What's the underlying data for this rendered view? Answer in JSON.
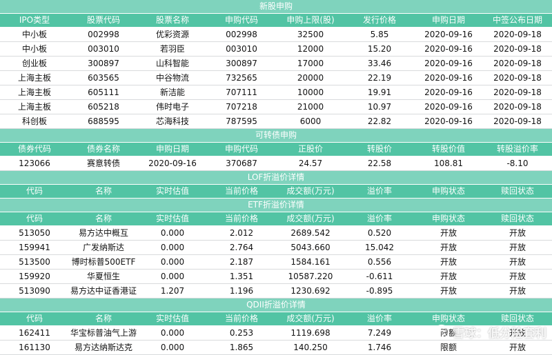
{
  "sections": {
    "ipo": {
      "title": "新股申购",
      "columns": [
        "IPO类型",
        "股票代码",
        "股票名称",
        "申购代码",
        "申购上限(股)",
        "发行价格",
        "申购日期",
        "中签公布日期"
      ],
      "rows": [
        [
          "中小板",
          "002998",
          "优彩资源",
          "002998",
          "32500",
          "5.85",
          "2020-09-16",
          "2020-09-18"
        ],
        [
          "中小板",
          "003010",
          "若羽臣",
          "003010",
          "12000",
          "15.20",
          "2020-09-16",
          "2020-09-18"
        ],
        [
          "创业板",
          "300897",
          "山科智能",
          "300897",
          "17000",
          "33.46",
          "2020-09-16",
          "2020-09-18"
        ],
        [
          "上海主板",
          "603565",
          "中谷物流",
          "732565",
          "20000",
          "22.19",
          "2020-09-16",
          "2020-09-18"
        ],
        [
          "上海主板",
          "605111",
          "新洁能",
          "707111",
          "10000",
          "19.91",
          "2020-09-16",
          "2020-09-18"
        ],
        [
          "上海主板",
          "605218",
          "伟时电子",
          "707218",
          "21000",
          "10.97",
          "2020-09-16",
          "2020-09-18"
        ],
        [
          "科创板",
          "688595",
          "芯海科技",
          "787595",
          "6000",
          "22.82",
          "2020-09-16",
          "2020-09-18"
        ]
      ]
    },
    "bond": {
      "title": "可转债申购",
      "columns": [
        "债券代码",
        "债券名称",
        "申购日期",
        "申购代码",
        "正股价",
        "转股价",
        "转股价值",
        "转股溢价率"
      ],
      "rows": [
        [
          "123066",
          "赛意转债",
          "2020-09-16",
          "370687",
          "24.57",
          "22.58",
          "108.81",
          "-8.10"
        ]
      ]
    },
    "lof": {
      "title": "LOF折溢价详情",
      "columns": [
        "代码",
        "名称",
        "实时估值",
        "当前价格",
        "成交额(万元)",
        "溢价率",
        "申购状态",
        "赎回状态"
      ],
      "rows": []
    },
    "etf": {
      "title": "ETF折溢价详情",
      "columns": [
        "代码",
        "名称",
        "实时估值",
        "当前价格",
        "成交额(万元)",
        "溢价率",
        "申购状态",
        "赎回状态"
      ],
      "rows": [
        [
          "513050",
          "易方达中概互",
          "0.000",
          "2.012",
          "2689.542",
          "0.520",
          "开放",
          "开放"
        ],
        [
          "159941",
          "广发纳斯达",
          "0.000",
          "2.764",
          "5043.660",
          "15.042",
          "开放",
          "开放"
        ],
        [
          "513500",
          "博时标普500ETF",
          "0.000",
          "2.187",
          "1584.161",
          "0.556",
          "开放",
          "开放"
        ],
        [
          "159920",
          "华夏恒生",
          "0.000",
          "1.351",
          "10587.220",
          "-0.611",
          "开放",
          "开放"
        ],
        [
          "513090",
          "易方达中证香港证",
          "1.207",
          "1.196",
          "1230.692",
          "-0.895",
          "开放",
          "开放"
        ]
      ]
    },
    "qdii": {
      "title": "QDII折溢价详情",
      "columns": [
        "代码",
        "名称",
        "实时估值",
        "当前价格",
        "成交额(万元)",
        "溢价率",
        "申购状态",
        "赎回状态"
      ],
      "rows": [
        [
          "162411",
          "华宝标普油气上游",
          "0.000",
          "0.253",
          "1119.698",
          "7.249",
          "限额",
          "开放"
        ],
        [
          "161130",
          "易方达纳斯达克",
          "0.000",
          "1.865",
          "140.250",
          "1.746",
          "限额",
          "开放"
        ]
      ]
    }
  },
  "watermark": {
    "text": "雪球：低分险套利",
    "icon": "snowball-logo-icon"
  },
  "colors": {
    "title_bar": "#7fd3bd",
    "header_row": "#52c4a4",
    "row_border": "#d8dadc"
  }
}
